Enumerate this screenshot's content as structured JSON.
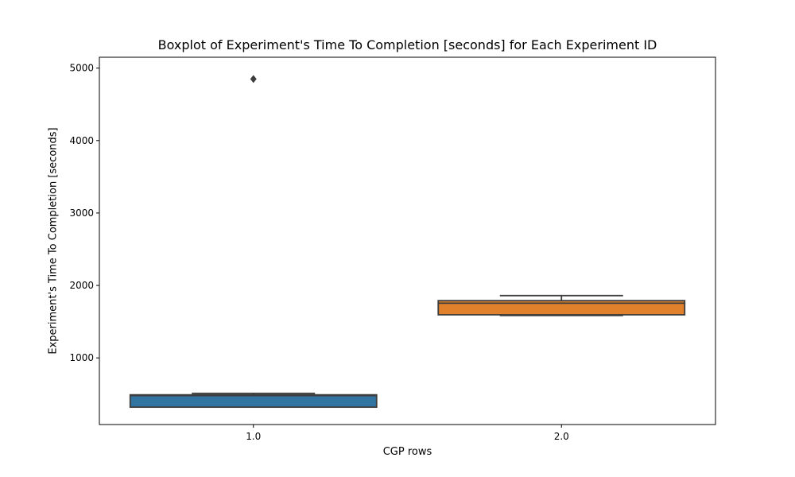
{
  "chart_data": {
    "type": "box",
    "title": "Boxplot of Experiment's Time To Completion [seconds] for Each Experiment ID",
    "xlabel": "CGP rows",
    "ylabel": "Experiment's Time To Completion [seconds]",
    "categories": [
      "1.0",
      "2.0"
    ],
    "ylim": [
      80,
      5150
    ],
    "yticks": [
      1000,
      2000,
      3000,
      4000,
      5000
    ],
    "grid": false,
    "boxes": [
      {
        "category": "1.0",
        "color": "#3274a1",
        "whisker_low": 320,
        "q1": 320,
        "median": 480,
        "q3": 490,
        "whisker_high": 510,
        "outliers": [
          4850
        ]
      },
      {
        "category": "2.0",
        "color": "#e1812c",
        "whisker_low": 1585,
        "q1": 1595,
        "median": 1755,
        "q3": 1790,
        "whisker_high": 1860,
        "outliers": []
      }
    ]
  }
}
